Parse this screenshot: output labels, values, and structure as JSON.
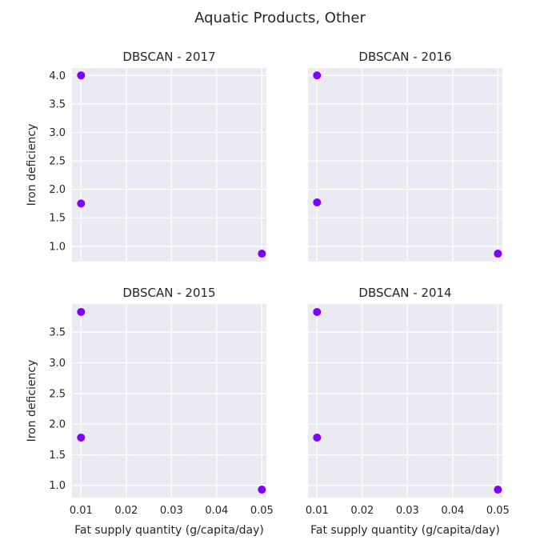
{
  "figure": {
    "title": "Aquatic Products, Other"
  },
  "chart_data": [
    {
      "type": "scatter",
      "title": "DBSCAN - 2017",
      "xlabel": "",
      "ylabel": "Iron deficiency",
      "xlim": [
        0.008,
        0.051
      ],
      "ylim": [
        0.73,
        4.13
      ],
      "xticks": [
        "0.01",
        "0.02",
        "0.03",
        "0.04",
        "0.05"
      ],
      "yticks": [
        "1.0",
        "1.5",
        "2.0",
        "2.5",
        "3.0",
        "3.5",
        "4.0"
      ],
      "show_xticklabels": false,
      "show_yticklabels": true,
      "grid": true,
      "color": "#8000ff",
      "points": [
        {
          "x": 0.01,
          "y": 4.0
        },
        {
          "x": 0.01,
          "y": 1.75
        },
        {
          "x": 0.05,
          "y": 0.87
        }
      ]
    },
    {
      "type": "scatter",
      "title": "DBSCAN - 2016",
      "xlabel": "",
      "ylabel": "",
      "xlim": [
        0.008,
        0.051
      ],
      "ylim": [
        0.73,
        4.13
      ],
      "xticks": [
        "0.01",
        "0.02",
        "0.03",
        "0.04",
        "0.05"
      ],
      "yticks": [
        "1.0",
        "1.5",
        "2.0",
        "2.5",
        "3.0",
        "3.5",
        "4.0"
      ],
      "show_xticklabels": false,
      "show_yticklabels": false,
      "grid": true,
      "color": "#8000ff",
      "points": [
        {
          "x": 0.01,
          "y": 4.0
        },
        {
          "x": 0.01,
          "y": 1.77
        },
        {
          "x": 0.05,
          "y": 0.87
        }
      ]
    },
    {
      "type": "scatter",
      "title": "DBSCAN - 2015",
      "xlabel": "Fat supply quantity (g/capita/day)",
      "ylabel": "Iron deficiency",
      "xlim": [
        0.008,
        0.051
      ],
      "ylim": [
        0.8,
        3.96
      ],
      "xticks": [
        "0.01",
        "0.02",
        "0.03",
        "0.04",
        "0.05"
      ],
      "yticks": [
        "1.0",
        "1.5",
        "2.0",
        "2.5",
        "3.0",
        "3.5"
      ],
      "show_xticklabels": true,
      "show_yticklabels": true,
      "grid": true,
      "color": "#8000ff",
      "points": [
        {
          "x": 0.01,
          "y": 3.83
        },
        {
          "x": 0.01,
          "y": 1.78
        },
        {
          "x": 0.05,
          "y": 0.93
        }
      ]
    },
    {
      "type": "scatter",
      "title": "DBSCAN - 2014",
      "xlabel": "Fat supply quantity (g/capita/day)",
      "ylabel": "",
      "xlim": [
        0.008,
        0.051
      ],
      "ylim": [
        0.8,
        3.96
      ],
      "xticks": [
        "0.01",
        "0.02",
        "0.03",
        "0.04",
        "0.05"
      ],
      "yticks": [
        "1.0",
        "1.5",
        "2.0",
        "2.5",
        "3.0",
        "3.5"
      ],
      "show_xticklabels": true,
      "show_yticklabels": false,
      "grid": true,
      "color": "#8000ff",
      "points": [
        {
          "x": 0.01,
          "y": 3.83
        },
        {
          "x": 0.01,
          "y": 1.78
        },
        {
          "x": 0.05,
          "y": 0.93
        }
      ]
    }
  ]
}
